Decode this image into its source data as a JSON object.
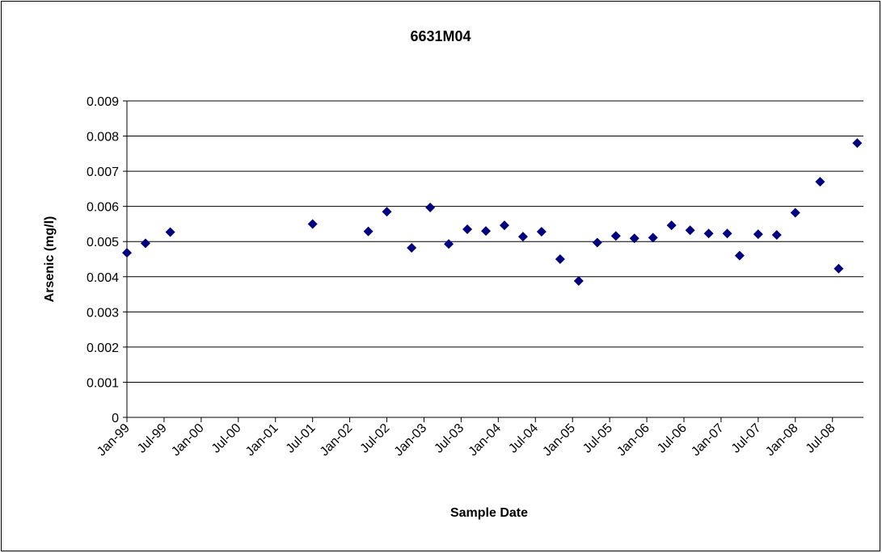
{
  "chart_data": {
    "type": "scatter",
    "title": "6631M04",
    "x_label": "Sample Date",
    "y_label": "Arsenic (mg/l)",
    "series": [
      {
        "color": "#000080",
        "x": [
          "1999-01",
          "1999-04",
          "1999-08",
          "2001-07",
          "2002-04",
          "2002-07",
          "2002-11",
          "2003-02",
          "2003-05",
          "2003-08",
          "2003-11",
          "2004-02",
          "2004-05",
          "2004-08",
          "2004-11",
          "2005-02",
          "2005-05",
          "2005-08",
          "2005-11",
          "2006-02",
          "2006-05",
          "2006-08",
          "2006-11",
          "2007-02",
          "2007-04",
          "2007-07",
          "2007-10",
          "2008-01",
          "2008-05",
          "2008-08",
          "2008-11"
        ],
        "values": [
          0.00468,
          0.00495,
          0.00527,
          0.0055,
          0.00529,
          0.00585,
          0.00482,
          0.00597,
          0.00493,
          0.00535,
          0.0053,
          0.00546,
          0.00514,
          0.00528,
          0.0045,
          0.00388,
          0.00497,
          0.00516,
          0.00509,
          0.00511,
          0.00546,
          0.00532,
          0.00523,
          0.00523,
          0.0046,
          0.00521,
          0.00519,
          0.00582,
          0.0067,
          0.00423,
          0.0078
        ]
      }
    ],
    "xlim": [
      "1999-01",
      "2008-12"
    ],
    "xticks": [
      {
        "value": "1999-01",
        "label": "Jan-99"
      },
      {
        "value": "1999-07",
        "label": "Jul-99"
      },
      {
        "value": "2000-01",
        "label": "Jan-00"
      },
      {
        "value": "2000-07",
        "label": "Jul-00"
      },
      {
        "value": "2001-01",
        "label": "Jan-01"
      },
      {
        "value": "2001-07",
        "label": "Jul-01"
      },
      {
        "value": "2002-01",
        "label": "Jan-02"
      },
      {
        "value": "2002-07",
        "label": "Jul-02"
      },
      {
        "value": "2003-01",
        "label": "Jan-03"
      },
      {
        "value": "2003-07",
        "label": "Jul-03"
      },
      {
        "value": "2004-01",
        "label": "Jan-04"
      },
      {
        "value": "2004-07",
        "label": "Jul-04"
      },
      {
        "value": "2005-01",
        "label": "Jan-05"
      },
      {
        "value": "2005-07",
        "label": "Jul-05"
      },
      {
        "value": "2006-01",
        "label": "Jan-06"
      },
      {
        "value": "2006-07",
        "label": "Jul-06"
      },
      {
        "value": "2007-01",
        "label": "Jan-07"
      },
      {
        "value": "2007-07",
        "label": "Jul-07"
      },
      {
        "value": "2008-01",
        "label": "Jan-08"
      },
      {
        "value": "2008-07",
        "label": "Jul-08"
      }
    ],
    "ylim": [
      0,
      0.009
    ],
    "yticks": [
      0,
      0.001,
      0.002,
      0.003,
      0.004,
      0.005,
      0.006,
      0.007,
      0.008,
      0.009
    ],
    "grid": true
  }
}
